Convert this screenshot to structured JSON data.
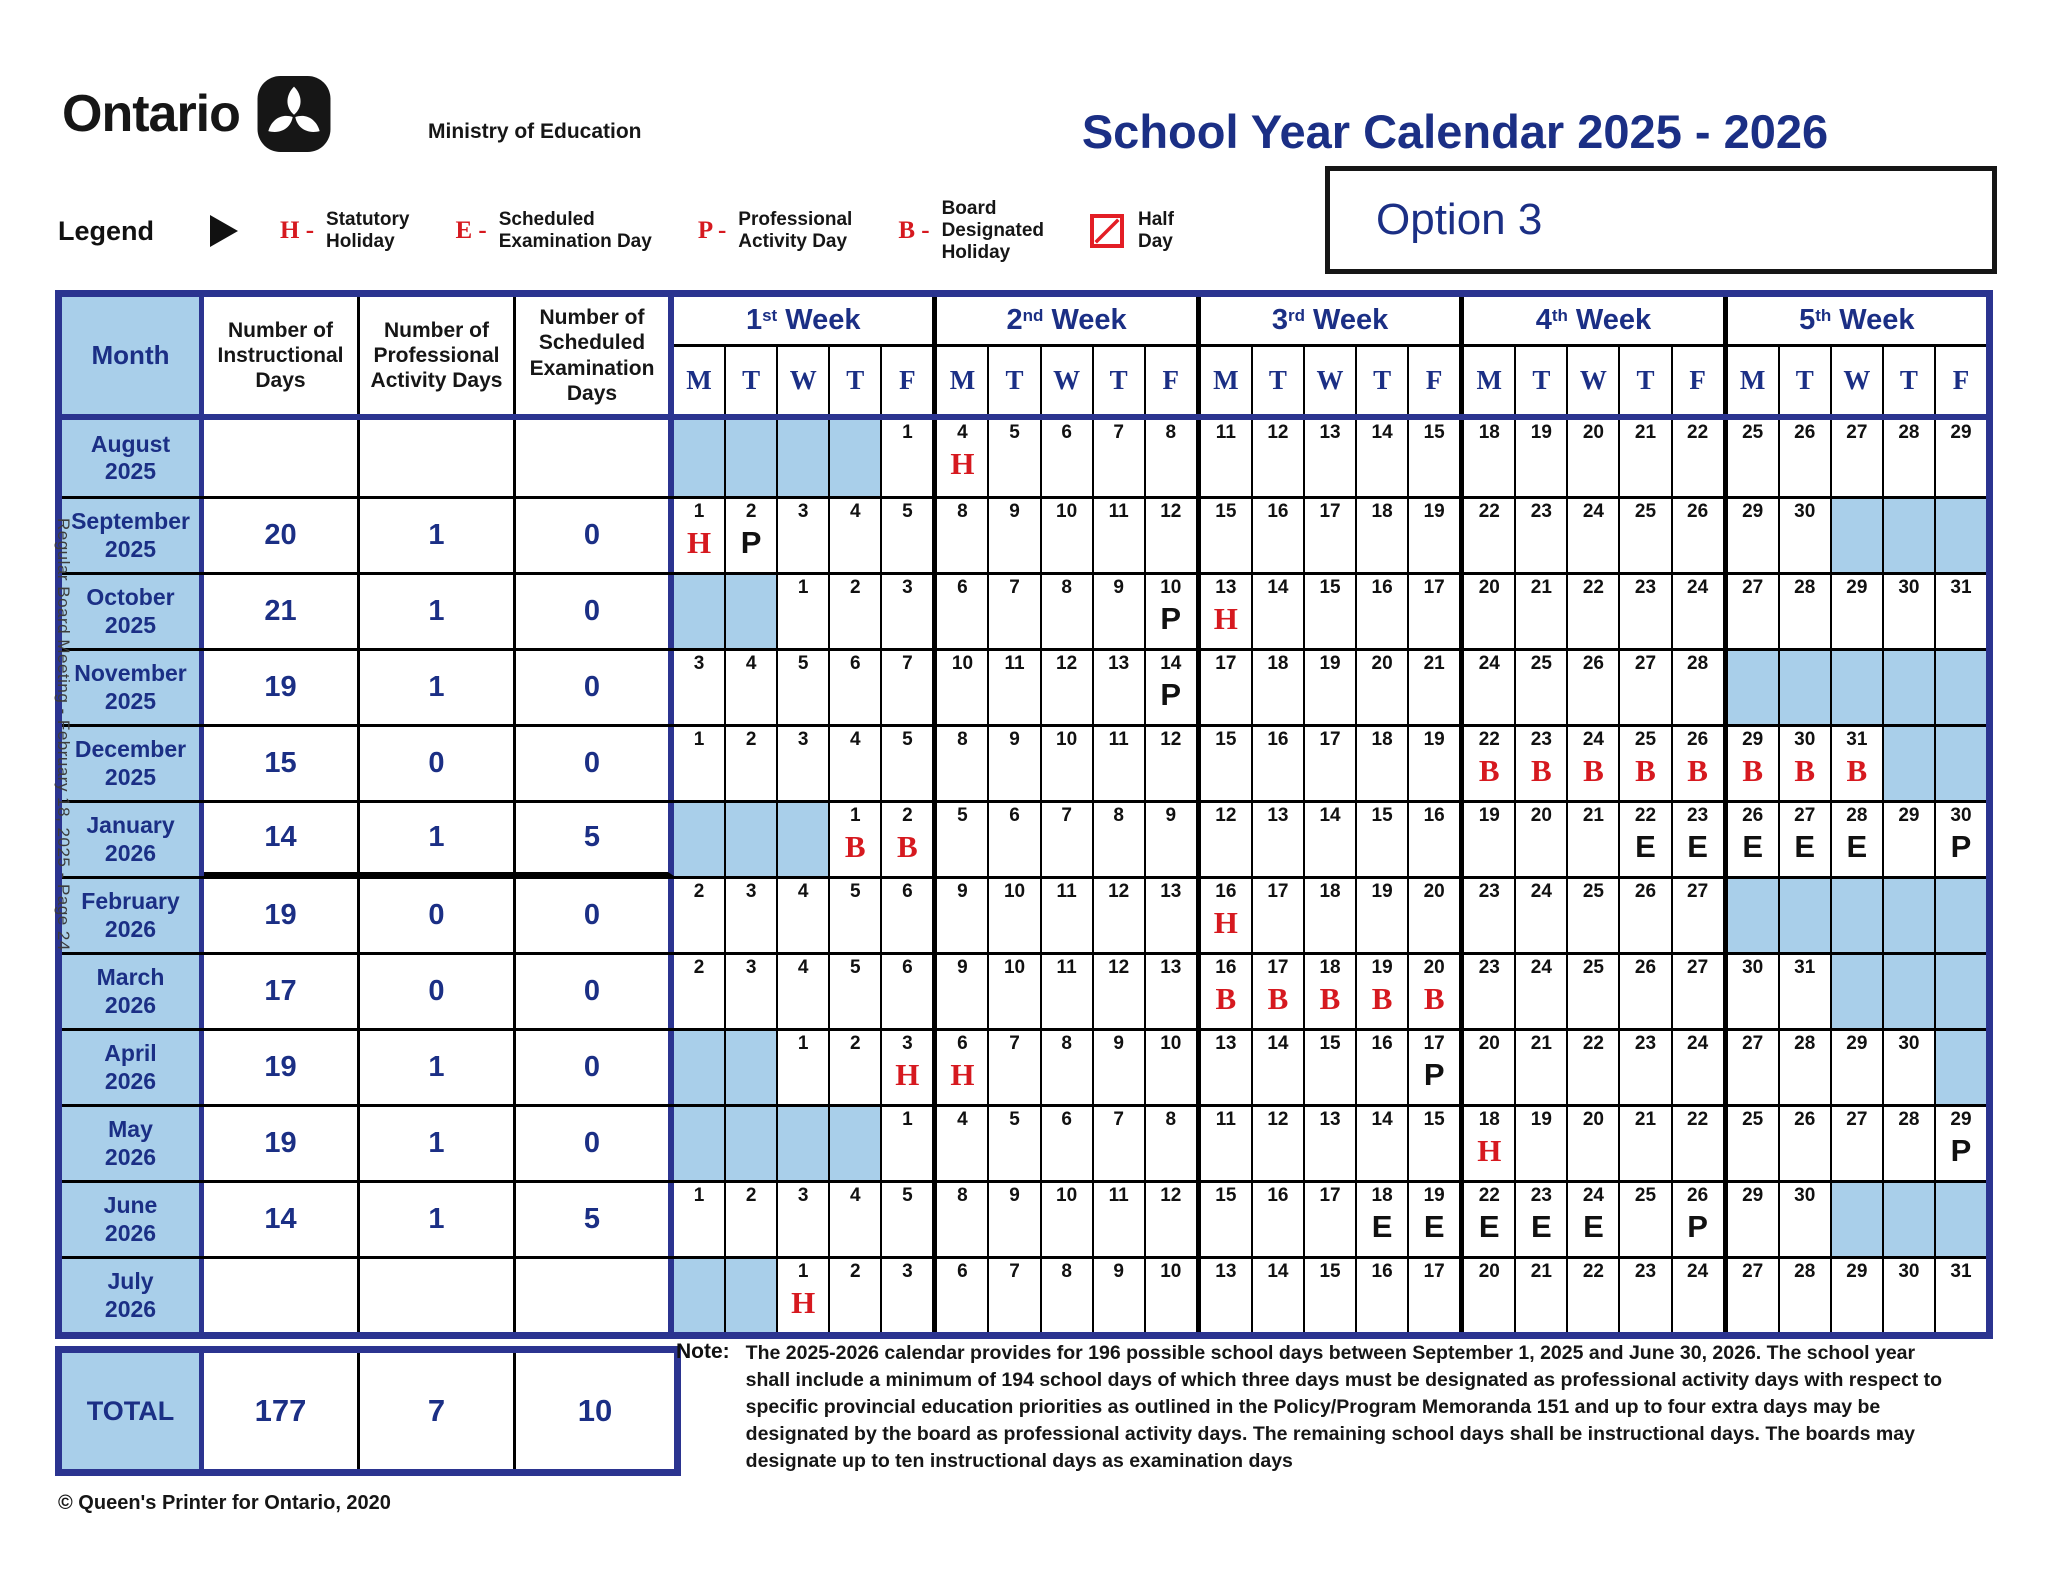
{
  "header": {
    "logo_text": "Ontario",
    "ministry": "Ministry of Education",
    "title": "School Year Calendar 2025 - 2026",
    "option_label": "Option 3"
  },
  "legend": {
    "label": "Legend",
    "items": [
      {
        "code": "H -",
        "label": "Statutory\nHoliday"
      },
      {
        "code": "E -",
        "label": "Scheduled\nExamination Day"
      },
      {
        "code": "P -",
        "label": "Professional\nActivity Day"
      },
      {
        "code": "B -",
        "label": "Board\nDesignated\nHoliday"
      },
      {
        "icon": "half-day-icon",
        "label": "Half\nDay"
      }
    ]
  },
  "table": {
    "columns": [
      "Month",
      "Number of Instructional Days",
      "Number of Professional Activity Days",
      "Number of Scheduled Examination Days"
    ],
    "week_headers": [
      {
        "ord": "1",
        "sup": "st",
        "word": "Week"
      },
      {
        "ord": "2",
        "sup": "nd",
        "word": "Week"
      },
      {
        "ord": "3",
        "sup": "rd",
        "word": "Week"
      },
      {
        "ord": "4",
        "sup": "th",
        "word": "Week"
      },
      {
        "ord": "5",
        "sup": "th",
        "word": "Week"
      }
    ],
    "day_headers": [
      "M",
      "T",
      "W",
      "T",
      "F"
    ],
    "months": [
      {
        "name": "August",
        "year": "2025",
        "instructional": "",
        "pa": "",
        "exam": "",
        "weeks": [
          [
            "x",
            "x",
            "x",
            "x",
            "1"
          ],
          [
            "4H",
            "5",
            "6",
            "7",
            "8"
          ],
          [
            "11",
            "12",
            "13",
            "14",
            "15"
          ],
          [
            "18",
            "19",
            "20",
            "21",
            "22"
          ],
          [
            "25",
            "26",
            "27",
            "28",
            "29"
          ]
        ]
      },
      {
        "name": "September",
        "year": "2025",
        "instructional": "20",
        "pa": "1",
        "exam": "0",
        "weeks": [
          [
            "1H",
            "2P",
            "3",
            "4",
            "5"
          ],
          [
            "8",
            "9",
            "10",
            "11",
            "12"
          ],
          [
            "15",
            "16",
            "17",
            "18",
            "19"
          ],
          [
            "22",
            "23",
            "24",
            "25",
            "26"
          ],
          [
            "29",
            "30",
            "x",
            "x",
            "x"
          ]
        ]
      },
      {
        "name": "October",
        "year": "2025",
        "instructional": "21",
        "pa": "1",
        "exam": "0",
        "weeks": [
          [
            "x",
            "x",
            "1",
            "2",
            "3"
          ],
          [
            "6",
            "7",
            "8",
            "9",
            "10P"
          ],
          [
            "13H",
            "14",
            "15",
            "16",
            "17"
          ],
          [
            "20",
            "21",
            "22",
            "23",
            "24"
          ],
          [
            "27",
            "28",
            "29",
            "30",
            "31"
          ]
        ]
      },
      {
        "name": "November",
        "year": "2025",
        "instructional": "19",
        "pa": "1",
        "exam": "0",
        "weeks": [
          [
            "3",
            "4",
            "5",
            "6",
            "7"
          ],
          [
            "10",
            "11",
            "12",
            "13",
            "14P"
          ],
          [
            "17",
            "18",
            "19",
            "20",
            "21"
          ],
          [
            "24",
            "25",
            "26",
            "27",
            "28"
          ],
          [
            "x",
            "x",
            "x",
            "x",
            "x"
          ]
        ]
      },
      {
        "name": "December",
        "year": "2025",
        "instructional": "15",
        "pa": "0",
        "exam": "0",
        "weeks": [
          [
            "1",
            "2",
            "3",
            "4",
            "5"
          ],
          [
            "8",
            "9",
            "10",
            "11",
            "12"
          ],
          [
            "15",
            "16",
            "17",
            "18",
            "19"
          ],
          [
            "22B",
            "23B",
            "24B",
            "25B",
            "26B"
          ],
          [
            "29B",
            "30B",
            "31B",
            "x",
            "x"
          ]
        ]
      },
      {
        "name": "January",
        "year": "2026",
        "instructional": "14",
        "pa": "1",
        "exam": "5",
        "stats_underline": true,
        "weeks": [
          [
            "x",
            "x",
            "x",
            "1B",
            "2B"
          ],
          [
            "5",
            "6",
            "7",
            "8",
            "9"
          ],
          [
            "12",
            "13",
            "14",
            "15",
            "16"
          ],
          [
            "19",
            "20",
            "21",
            "22E",
            "23E"
          ],
          [
            "26E",
            "27E",
            "28E",
            "29",
            "30P"
          ]
        ]
      },
      {
        "name": "February",
        "year": "2026",
        "instructional": "19",
        "pa": "0",
        "exam": "0",
        "weeks": [
          [
            "2",
            "3",
            "4",
            "5",
            "6"
          ],
          [
            "9",
            "10",
            "11",
            "12",
            "13"
          ],
          [
            "16H",
            "17",
            "18",
            "19",
            "20"
          ],
          [
            "23",
            "24",
            "25",
            "26",
            "27"
          ],
          [
            "x",
            "x",
            "x",
            "x",
            "x"
          ]
        ]
      },
      {
        "name": "March",
        "year": "2026",
        "instructional": "17",
        "pa": "0",
        "exam": "0",
        "weeks": [
          [
            "2",
            "3",
            "4",
            "5",
            "6"
          ],
          [
            "9",
            "10",
            "11",
            "12",
            "13"
          ],
          [
            "16B",
            "17B",
            "18B",
            "19B",
            "20B"
          ],
          [
            "23",
            "24",
            "25",
            "26",
            "27"
          ],
          [
            "30",
            "31",
            "x",
            "x",
            "x"
          ]
        ]
      },
      {
        "name": "April",
        "year": "2026",
        "instructional": "19",
        "pa": "1",
        "exam": "0",
        "weeks": [
          [
            "x",
            "x",
            "1",
            "2",
            "3H"
          ],
          [
            "6H",
            "7",
            "8",
            "9",
            "10"
          ],
          [
            "13",
            "14",
            "15",
            "16",
            "17P"
          ],
          [
            "20",
            "21",
            "22",
            "23",
            "24"
          ],
          [
            "27",
            "28",
            "29",
            "30",
            "x"
          ]
        ]
      },
      {
        "name": "May",
        "year": "2026",
        "instructional": "19",
        "pa": "1",
        "exam": "0",
        "weeks": [
          [
            "x",
            "x",
            "x",
            "x",
            "1"
          ],
          [
            "4",
            "5",
            "6",
            "7",
            "8"
          ],
          [
            "11",
            "12",
            "13",
            "14",
            "15"
          ],
          [
            "18H",
            "19",
            "20",
            "21",
            "22"
          ],
          [
            "25",
            "26",
            "27",
            "28",
            "29P"
          ]
        ]
      },
      {
        "name": "June",
        "year": "2026",
        "instructional": "14",
        "pa": "1",
        "exam": "5",
        "weeks": [
          [
            "1",
            "2",
            "3",
            "4",
            "5"
          ],
          [
            "8",
            "9",
            "10",
            "11",
            "12"
          ],
          [
            "15",
            "16",
            "17",
            "18E",
            "19E"
          ],
          [
            "22E",
            "23E",
            "24E",
            "25",
            "26P"
          ],
          [
            "29",
            "30",
            "x",
            "x",
            "x"
          ]
        ]
      },
      {
        "name": "July",
        "year": "2026",
        "instructional": "",
        "pa": "",
        "exam": "",
        "weeks": [
          [
            "x",
            "x",
            "1H",
            "2",
            "3"
          ],
          [
            "6",
            "7",
            "8",
            "9",
            "10"
          ],
          [
            "13",
            "14",
            "15",
            "16",
            "17"
          ],
          [
            "20",
            "21",
            "22",
            "23",
            "24"
          ],
          [
            "27",
            "28",
            "29",
            "30",
            "31"
          ]
        ]
      }
    ],
    "total": {
      "label": "TOTAL",
      "instructional": "177",
      "pa": "7",
      "exam": "10"
    }
  },
  "note": {
    "label": "Note:",
    "text": "The 2025-2026 calendar provides for 196 possible school days between September 1, 2025 and June 30, 2026. The school year shall include a minimum of 194 school days of which three days must be designated as professional activity days with respect to specific provincial education priorities as outlined in the Policy/Program Memoranda 151 and up to four extra days may be designated by the board as professional activity days.  The remaining school days shall be instructional days.  The boards may designate up to ten instructional days as examination days"
  },
  "side_text": "Regular Board Meeting - February 18, 2025 - Page 24",
  "footer": "© Queen's Printer for Ontario, 2020",
  "colors": {
    "navy_border": "#2b3490",
    "header_text": "#1b2f85",
    "light_blue": "#a9cfea",
    "legend_red": "#d6191f",
    "black": "#111111"
  }
}
